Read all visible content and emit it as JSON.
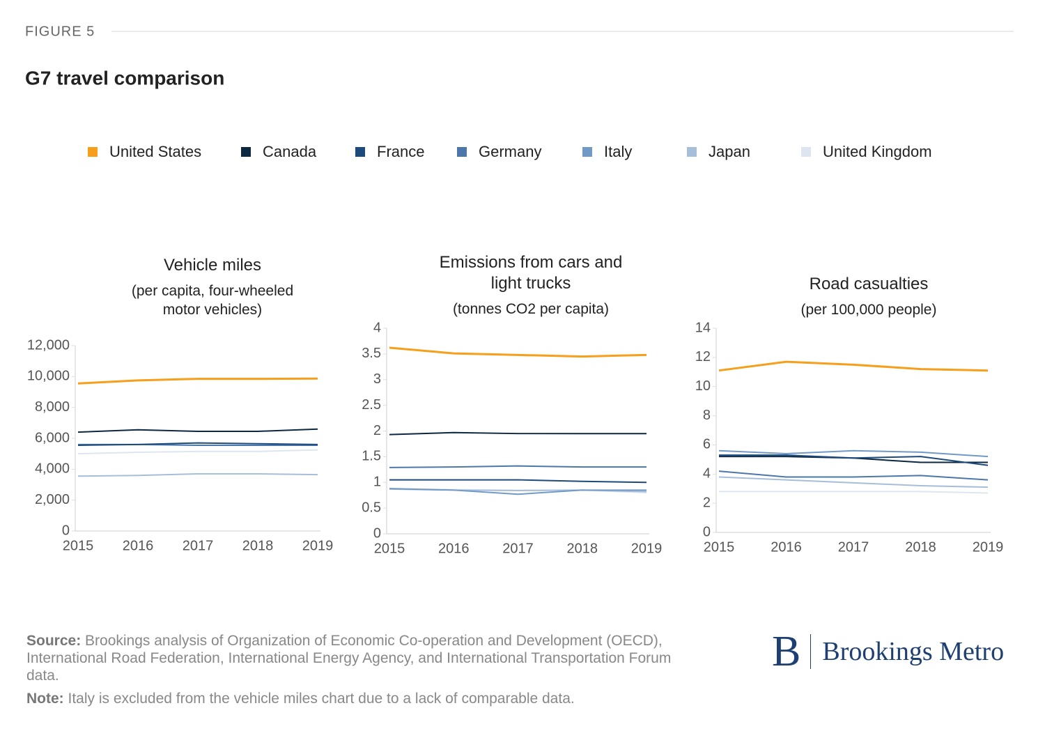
{
  "header": {
    "figure": "FIGURE 5",
    "title": "G7 travel comparison"
  },
  "legend": [
    {
      "name": "United States",
      "color": "#f79e1b"
    },
    {
      "name": "Canada",
      "color": "#0b2742"
    },
    {
      "name": "France",
      "color": "#1d4a7c"
    },
    {
      "name": "Germany",
      "color": "#4b77aa"
    },
    {
      "name": "Italy",
      "color": "#7199c6"
    },
    {
      "name": "Japan",
      "color": "#a7bedb"
    },
    {
      "name": "United Kingdom",
      "color": "#dde6f0"
    }
  ],
  "chart_data": [
    {
      "type": "line",
      "title": "Vehicle miles",
      "subtitle": "(per capita, four-wheeled motor vehicles)",
      "categories": [
        "2015",
        "2016",
        "2017",
        "2018",
        "2019"
      ],
      "ylim": [
        0,
        12000
      ],
      "yticks": [
        0,
        {
          "value": 2000,
          "label": "2,000"
        },
        {
          "value": 4000,
          "label": "4,000"
        },
        {
          "value": 6000,
          "label": "6,000"
        },
        {
          "value": 8000,
          "label": "8,000"
        },
        {
          "value": 10000,
          "label": "10,000"
        },
        {
          "value": 12000,
          "label": "12,000"
        }
      ],
      "series": [
        {
          "name": "United Kingdom",
          "values": [
            5000,
            5100,
            5150,
            5150,
            5250
          ]
        },
        {
          "name": "Japan",
          "values": [
            3550,
            3600,
            3700,
            3700,
            3650
          ]
        },
        {
          "name": "Germany",
          "values": [
            5600,
            5600,
            5550,
            5550,
            5550
          ]
        },
        {
          "name": "France",
          "values": [
            5550,
            5600,
            5700,
            5650,
            5600
          ]
        },
        {
          "name": "Canada",
          "values": [
            6400,
            6550,
            6450,
            6450,
            6600
          ]
        },
        {
          "name": "United States",
          "values": [
            9550,
            9750,
            9850,
            9850,
            9870
          ]
        }
      ]
    },
    {
      "type": "line",
      "title": "Emissions from cars and light trucks",
      "subtitle": "(tonnes CO2 per capita)",
      "categories": [
        "2015",
        "2016",
        "2017",
        "2018",
        "2019"
      ],
      "ylim": [
        0,
        4
      ],
      "yticks": [
        0,
        0.5,
        1,
        1.5,
        2,
        2.5,
        3,
        3.5,
        4
      ],
      "series": [
        {
          "name": "United Kingdom",
          "values": [
            0.88,
            0.86,
            0.85,
            0.85,
            0.8
          ]
        },
        {
          "name": "Japan",
          "values": [
            0.87,
            0.85,
            0.84,
            0.85,
            0.82
          ]
        },
        {
          "name": "Italy",
          "values": [
            0.88,
            0.85,
            0.77,
            0.85,
            0.85
          ]
        },
        {
          "name": "Germany",
          "values": [
            1.29,
            1.3,
            1.32,
            1.3,
            1.3
          ]
        },
        {
          "name": "France",
          "values": [
            1.05,
            1.05,
            1.05,
            1.02,
            1.0
          ]
        },
        {
          "name": "Canada",
          "values": [
            1.93,
            1.97,
            1.95,
            1.95,
            1.95
          ]
        },
        {
          "name": "United States",
          "values": [
            3.62,
            3.51,
            3.48,
            3.45,
            3.48
          ]
        }
      ]
    },
    {
      "type": "line",
      "title": "Road casualties",
      "subtitle": "(per 100,000 people)",
      "categories": [
        "2015",
        "2016",
        "2017",
        "2018",
        "2019"
      ],
      "ylim": [
        0,
        14
      ],
      "yticks": [
        0,
        2,
        4,
        6,
        8,
        10,
        12,
        14
      ],
      "series": [
        {
          "name": "United Kingdom",
          "values": [
            2.8,
            2.8,
            2.8,
            2.8,
            2.7
          ]
        },
        {
          "name": "Japan",
          "values": [
            3.8,
            3.6,
            3.4,
            3.2,
            3.1
          ]
        },
        {
          "name": "Germany",
          "values": [
            4.2,
            3.8,
            3.8,
            3.9,
            3.6
          ]
        },
        {
          "name": "Italy",
          "values": [
            5.6,
            5.4,
            5.6,
            5.5,
            5.2
          ]
        },
        {
          "name": "Canada",
          "values": [
            5.2,
            5.2,
            5.1,
            4.8,
            4.8
          ]
        },
        {
          "name": "France",
          "values": [
            5.3,
            5.3,
            5.1,
            5.2,
            4.6
          ]
        },
        {
          "name": "United States",
          "values": [
            11.1,
            11.7,
            11.5,
            11.2,
            11.1
          ]
        }
      ]
    }
  ],
  "footer": {
    "source_label": "Source:",
    "source_text": "Brookings analysis of Organization of Economic Co-operation and Development (OECD), International Road Federation, International Energy Agency, and International Transportation Forum data.",
    "note_label": "Note:",
    "note_text": "Italy is excluded from the vehicle miles chart due to a lack of comparable data.",
    "logo_letter": "B",
    "logo_text": "Brookings Metro"
  }
}
